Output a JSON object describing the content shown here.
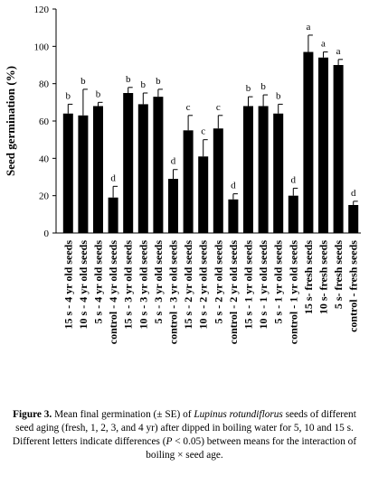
{
  "chart_data": {
    "type": "bar",
    "y_label": "Seed germination (%)",
    "categories": [
      "15 s - 4 yr old seeds",
      "10 s - 4 yr old seeds",
      "5 s - 4 yr old seeds",
      "control - 4 yr old seeds",
      "15 s - 3 yr old seeds",
      "10 s - 3 yr old seeds",
      "5 s - 3 yr old seeds",
      "control - 3 yr old seeds",
      "15 s - 2 yr old seeds",
      "10 s - 2 yr old seeds",
      "5 s - 2 yr old seeds",
      "control - 2 yr old seeds",
      "15 s - 1 yr old seeds",
      "10 s - 1 yr old seeds",
      "5 s - 1 yr old seeds",
      "control - 1 yr old seeds",
      "15 s- fresh seeds",
      "10 s- fresh seeds",
      "5 s- fresh seeds",
      "control - fresh seeds"
    ],
    "values": [
      64,
      63,
      68,
      19,
      75,
      69,
      73,
      29,
      55,
      41,
      56,
      18,
      68,
      68,
      64,
      20,
      97,
      94,
      90,
      15
    ],
    "errors": [
      5,
      14,
      2,
      6,
      3,
      6,
      4,
      5,
      8,
      9,
      7,
      3,
      5,
      6,
      5,
      4,
      9,
      3,
      3,
      2
    ],
    "letters": [
      "b",
      "b",
      "b",
      "d",
      "b",
      "b",
      "b",
      "d",
      "c",
      "c",
      "c",
      "d",
      "b",
      "b",
      "b",
      "d",
      "a",
      "a",
      "a",
      "d"
    ],
    "color": "#000000",
    "ylim": [
      0,
      120
    ],
    "yticks": [
      0,
      20,
      40,
      60,
      80,
      100,
      120
    ]
  },
  "caption": {
    "label": "Figure 3.",
    "parts": [
      "Mean final germination (± SE) of ",
      "Lupinus rotundiflorus",
      " seeds of different seed aging (fresh, 1, 2, 3, and 4 yr) after dipped in boiling water for 5, 10 and 15 s. Different letters indicate differences (",
      "P",
      " < 0.05) between means for the interaction of boiling × seed age."
    ]
  }
}
